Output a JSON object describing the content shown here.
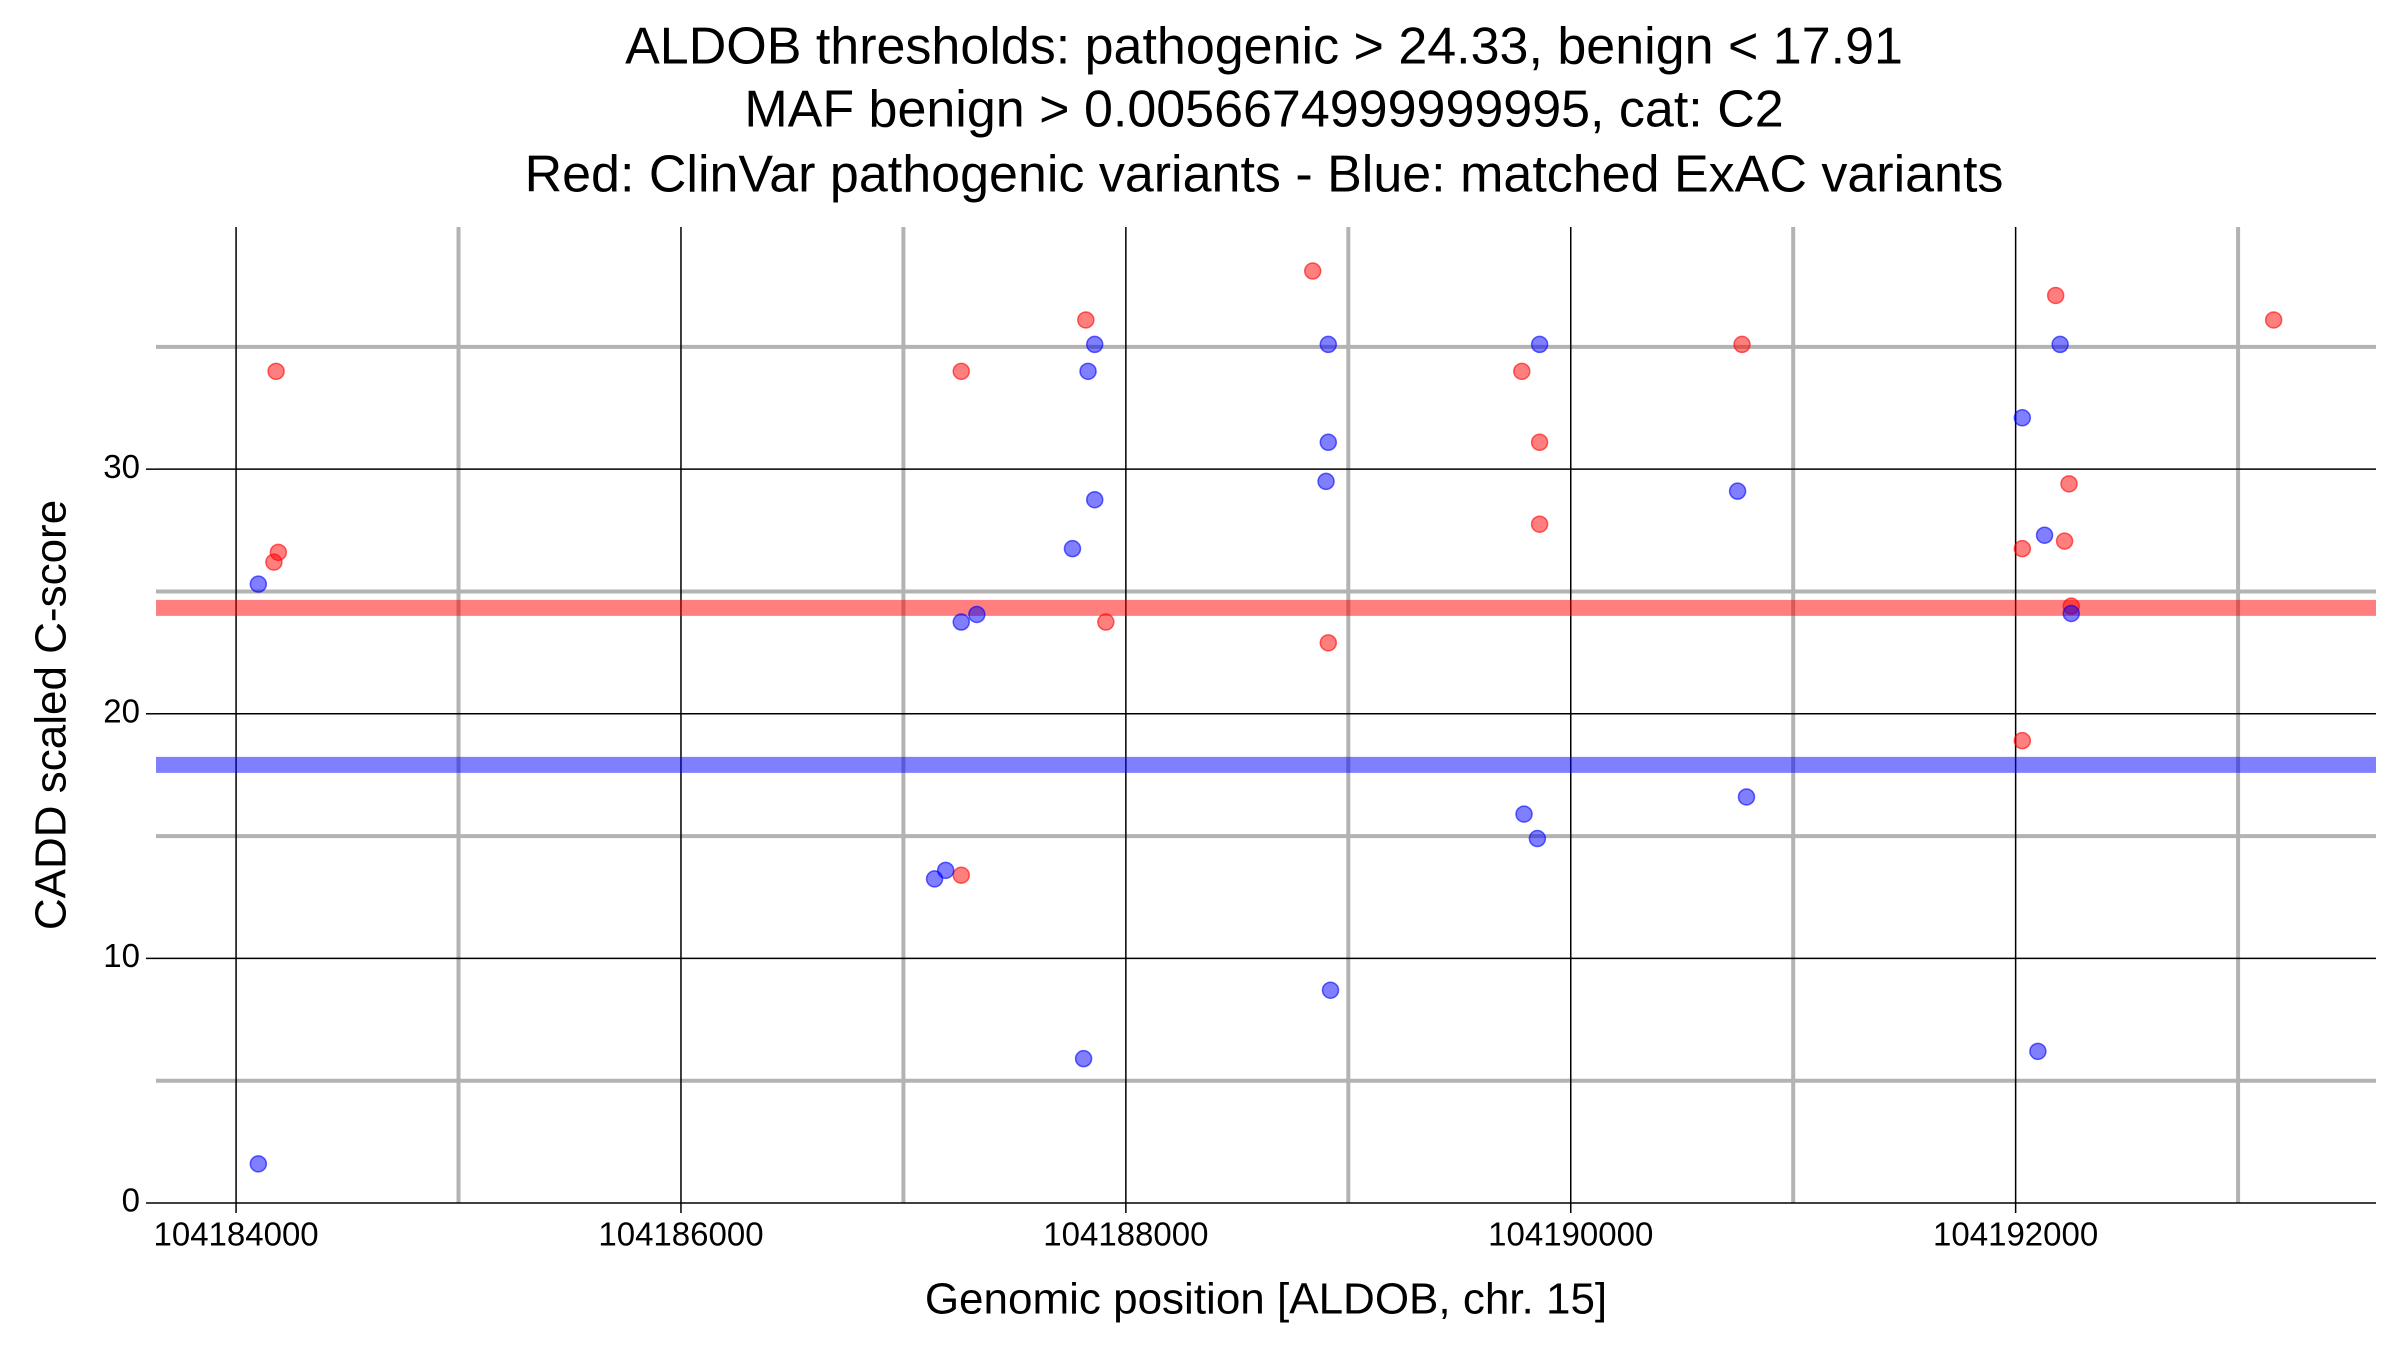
{
  "chart_data": {
    "type": "scatter",
    "title": [
      "ALDOB thresholds: pathogenic > 24.33, benign < 17.91",
      "MAF benign > 0.0056674999999995, cat: C2",
      "Red: ClinVar pathogenic variants - Blue: matched ExAC variants"
    ],
    "xlabel": "Genomic position [ALDOB, chr. 15]",
    "ylabel": "CADD scaled C-score",
    "xlim": [
      104183640,
      104193620
    ],
    "ylim": [
      0,
      39.9
    ],
    "xticks": [
      104184000,
      104186000,
      104188000,
      104190000,
      104192000
    ],
    "xminorticks": [
      104185000,
      104187000,
      104189000,
      104191000,
      104193000
    ],
    "yticks": [
      0,
      10,
      20,
      30
    ],
    "yminorticks": [
      5,
      15,
      25,
      35
    ],
    "grid": true,
    "hlines": [
      {
        "value": 24.33,
        "color": "#ff0000"
      },
      {
        "value": 17.91,
        "color": "#0000ff"
      }
    ],
    "series": [
      {
        "color": "#ff0000",
        "x": [
          104184180,
          104184170,
          104184190,
          104187260,
          104187260,
          104187820,
          104187910,
          104188840,
          104188910,
          104189780,
          104189860,
          104189860,
          104190770,
          104192030,
          104192030,
          104192180,
          104192220,
          104192240,
          104192250,
          104193160
        ],
        "values": [
          34,
          26.2,
          26.6,
          34,
          13.4,
          36.1,
          23.75,
          38.1,
          22.9,
          34,
          31.1,
          27.75,
          35.1,
          18.9,
          26.75,
          37.1,
          27.06,
          29.4,
          24.4,
          36.1
        ]
      },
      {
        "color": "#0000ff",
        "x": [
          104184100,
          104184100,
          104187140,
          104187190,
          104187260,
          104187330,
          104187760,
          104187810,
          104187830,
          104187860,
          104187860,
          104188910,
          104188910,
          104188900,
          104188920,
          104189790,
          104189850,
          104189860,
          104190750,
          104190790,
          104192030,
          104192100,
          104192130,
          104192200,
          104192250
        ],
        "values": [
          1.6,
          25.3,
          13.25,
          13.6,
          23.75,
          24.06,
          26.75,
          5.9,
          34,
          35.1,
          28.75,
          35.1,
          31.1,
          29.5,
          8.7,
          15.9,
          14.9,
          35.1,
          29.1,
          16.6,
          32.1,
          6.2,
          27.3,
          35.1,
          24.1
        ]
      }
    ]
  }
}
